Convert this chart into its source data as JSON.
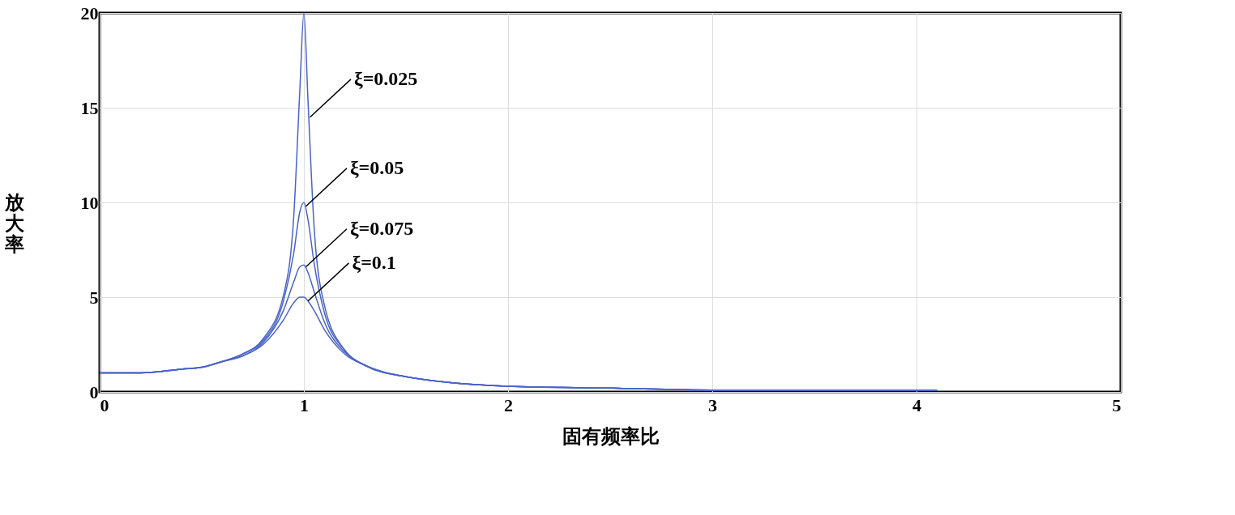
{
  "chart_data": {
    "type": "line",
    "xlabel": "固有频率比",
    "ylabel": "放大率",
    "x": [
      0,
      0.2,
      0.4,
      0.5,
      0.6,
      0.7,
      0.8,
      0.9,
      0.95,
      0.98,
      1.0,
      1.02,
      1.05,
      1.1,
      1.2,
      1.3,
      1.5,
      2,
      2.5,
      3,
      3.5,
      4,
      4.1
    ],
    "series": [
      {
        "color": "#4a63c8",
        "values": [
          1.0,
          1.0,
          1.2,
          1.3,
          1.6,
          2.0,
          2.8,
          5.1,
          9.2,
          15.9,
          20.0,
          15.4,
          8.7,
          4.6,
          2.2,
          1.4,
          0.8,
          0.3,
          0.2,
          0.1,
          0.1,
          0.1,
          0.1
        ]
      },
      {
        "color": "#4a63c8",
        "values": [
          1.0,
          1.0,
          1.2,
          1.3,
          1.6,
          2.0,
          2.7,
          4.8,
          7.3,
          9.5,
          10.0,
          9.1,
          6.8,
          4.2,
          2.2,
          1.4,
          0.8,
          0.3,
          0.2,
          0.1,
          0.1,
          0.1,
          0.1
        ]
      },
      {
        "color": "#4a63c8",
        "values": [
          1.0,
          1.0,
          1.2,
          1.3,
          1.6,
          1.9,
          2.6,
          4.3,
          5.8,
          6.6,
          6.7,
          6.3,
          5.3,
          3.7,
          2.1,
          1.4,
          0.8,
          0.3,
          0.2,
          0.1,
          0.1,
          0.1,
          0.1
        ]
      },
      {
        "color": "#4a63c8",
        "values": [
          1.0,
          1.0,
          1.2,
          1.3,
          1.6,
          1.9,
          2.5,
          3.8,
          4.7,
          5.0,
          5.0,
          4.8,
          4.3,
          3.3,
          2.0,
          1.4,
          0.8,
          0.3,
          0.2,
          0.1,
          0.1,
          0.1,
          0.1
        ]
      }
    ],
    "annotations": [
      {
        "text": "ξ=0.025",
        "x": 1.03,
        "y": 14.5
      },
      {
        "text": "ξ=0.05",
        "x": 1.01,
        "y": 9.8
      },
      {
        "text": "ξ=0.075",
        "x": 1.01,
        "y": 6.6
      },
      {
        "text": "ξ=0.1",
        "x": 1.02,
        "y": 4.8
      }
    ],
    "xlim": [
      0,
      5
    ],
    "xticks": [
      0,
      1,
      2,
      3,
      4,
      5
    ],
    "ylim": [
      0,
      20
    ],
    "yticks": [
      0,
      5,
      10,
      15,
      20
    ],
    "grid": true,
    "marker": "none",
    "line_style": "solid"
  }
}
